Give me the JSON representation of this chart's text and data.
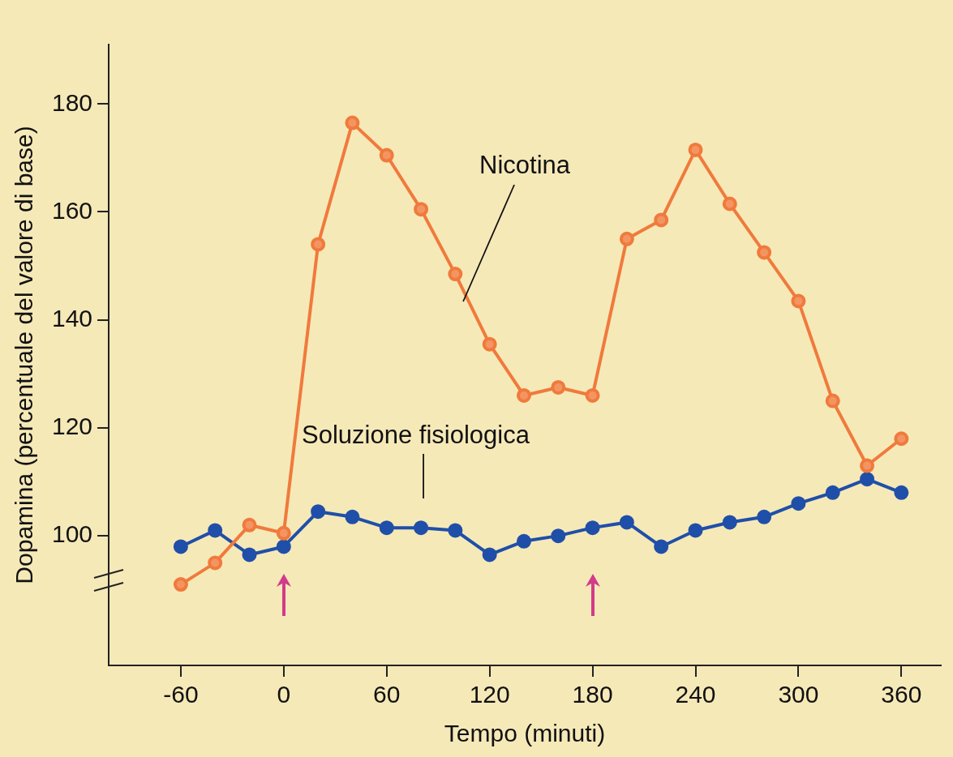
{
  "chart_data": {
    "type": "line",
    "xlabel": "Tempo (minuti)",
    "ylabel": "Dopamina (percentuale del valore di base)",
    "x": [
      -60,
      -40,
      -20,
      0,
      20,
      40,
      60,
      80,
      100,
      120,
      140,
      160,
      180,
      200,
      220,
      240,
      260,
      280,
      300,
      320,
      340,
      360
    ],
    "series": [
      {
        "name": "Nicotina",
        "color": "#f07a3c",
        "values": [
          91,
          95,
          102,
          100.5,
          154,
          176.5,
          170.5,
          160.5,
          148.5,
          135.5,
          126,
          127.5,
          126,
          155,
          158.5,
          171.5,
          161.5,
          152.5,
          143.5,
          125,
          113,
          118
        ]
      },
      {
        "name": "Soluzione fisiologica",
        "color": "#1f4fa8",
        "values": [
          98,
          101,
          96.5,
          98,
          104.5,
          103.5,
          101.5,
          101.5,
          101,
          96.5,
          99,
          100,
          101.5,
          102.5,
          98,
          101,
          102.5,
          103.5,
          106,
          108,
          110.5,
          108
        ]
      }
    ],
    "xlim": [
      -102,
      383
    ],
    "xticks": [
      -60,
      0,
      60,
      120,
      180,
      240,
      300,
      360
    ],
    "ylim": [
      76,
      191
    ],
    "yticks": [
      100,
      120,
      140,
      160,
      180
    ],
    "grid": false,
    "legend": false,
    "marker": "circle",
    "line_style": "solid"
  }
}
